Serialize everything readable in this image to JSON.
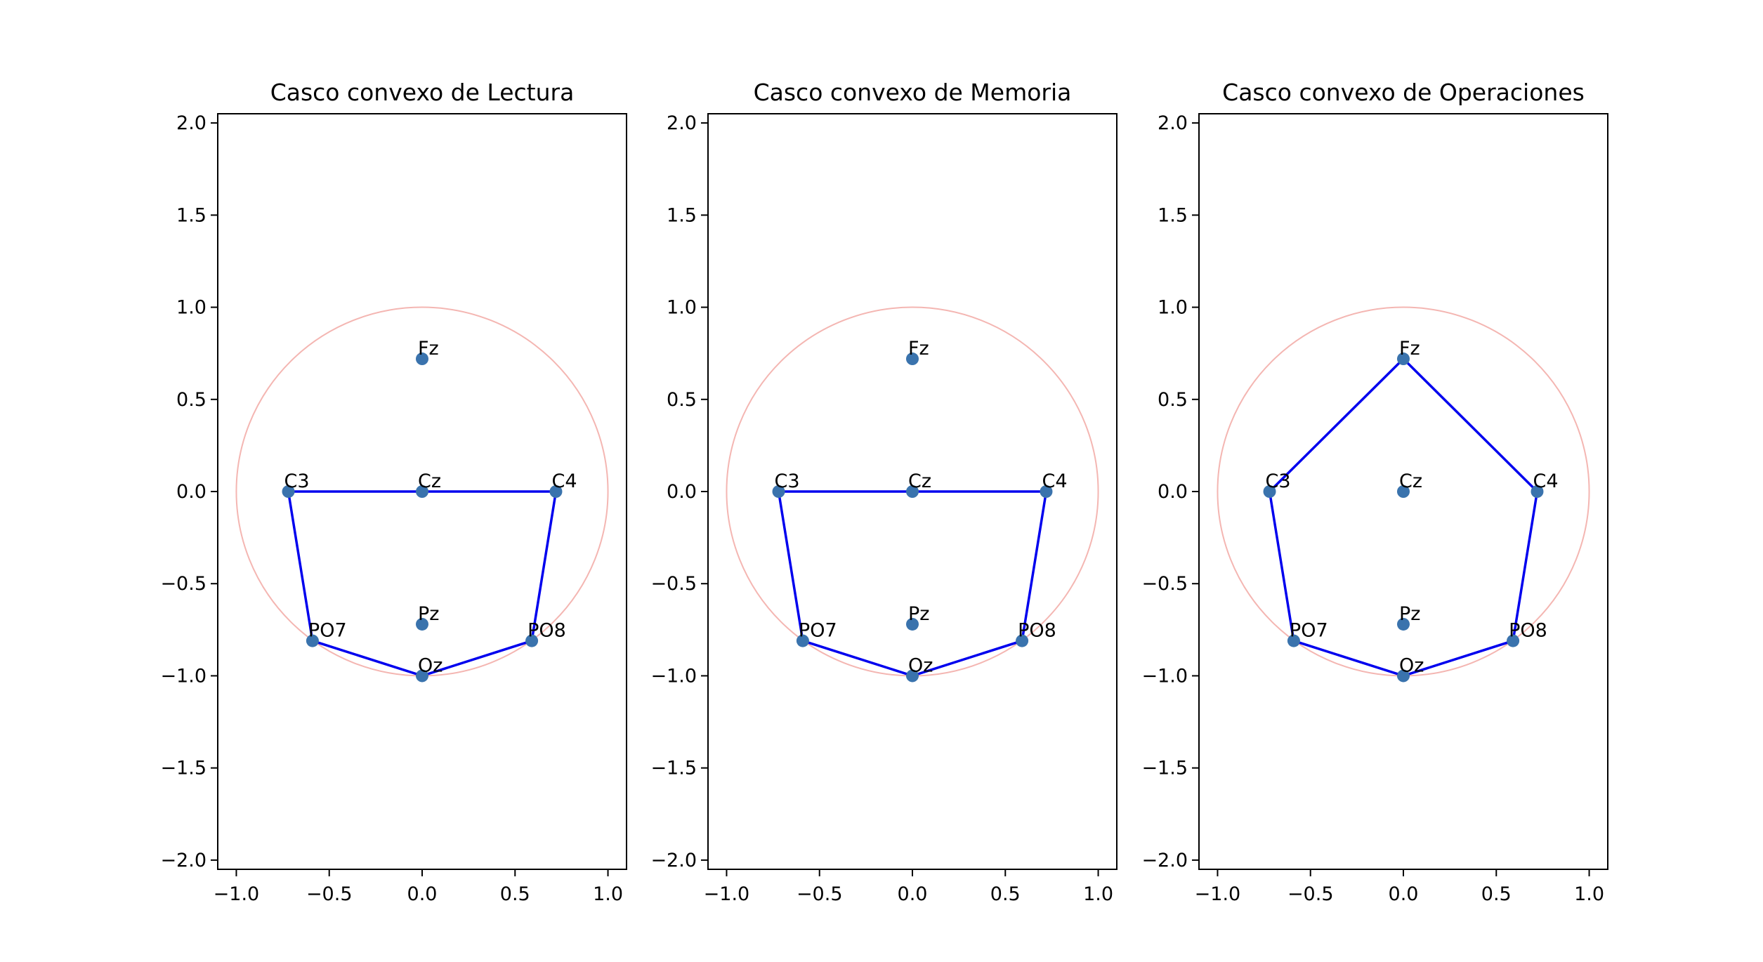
{
  "chart_data": [
    {
      "type": "scatter",
      "title": "Casco convexo de Lectura",
      "xlabel": "",
      "ylabel": "",
      "xlim": [
        -1.1,
        1.1
      ],
      "ylim": [
        -2.05,
        2.05
      ],
      "xticks": [
        -1.0,
        -0.5,
        0.0,
        0.5,
        1.0
      ],
      "xtick_labels": [
        "−1.0",
        "−0.5",
        "0.0",
        "0.5",
        "1.0"
      ],
      "yticks": [
        -2.0,
        -1.5,
        -1.0,
        -0.5,
        0.0,
        0.5,
        1.0,
        1.5,
        2.0
      ],
      "ytick_labels": [
        "−2.0",
        "−1.5",
        "−1.0",
        "−0.5",
        "0.0",
        "0.5",
        "1.0",
        "1.5",
        "2.0"
      ],
      "grid": false,
      "circle": {
        "cx": 0,
        "cy": 0,
        "r": 1,
        "color": "#f4b6b2"
      },
      "points": [
        {
          "label": "Fz",
          "x": 0.0,
          "y": 0.72
        },
        {
          "label": "C3",
          "x": -0.72,
          "y": 0.0
        },
        {
          "label": "Cz",
          "x": 0.0,
          "y": 0.0
        },
        {
          "label": "C4",
          "x": 0.72,
          "y": 0.0
        },
        {
          "label": "Pz",
          "x": 0.0,
          "y": -0.72
        },
        {
          "label": "PO7",
          "x": -0.59,
          "y": -0.81
        },
        {
          "label": "Oz",
          "x": 0.0,
          "y": -1.0
        },
        {
          "label": "PO8",
          "x": 0.59,
          "y": -0.81
        }
      ],
      "hull": [
        "C3",
        "Cz",
        "C4",
        "PO8",
        "Oz",
        "PO7",
        "C3"
      ],
      "point_color": "#3a73ad",
      "hull_color": "#0000ee"
    },
    {
      "type": "scatter",
      "title": "Casco convexo de Memoria",
      "xlabel": "",
      "ylabel": "",
      "xlim": [
        -1.1,
        1.1
      ],
      "ylim": [
        -2.05,
        2.05
      ],
      "xticks": [
        -1.0,
        -0.5,
        0.0,
        0.5,
        1.0
      ],
      "xtick_labels": [
        "−1.0",
        "−0.5",
        "0.0",
        "0.5",
        "1.0"
      ],
      "yticks": [
        -2.0,
        -1.5,
        -1.0,
        -0.5,
        0.0,
        0.5,
        1.0,
        1.5,
        2.0
      ],
      "ytick_labels": [
        "−2.0",
        "−1.5",
        "−1.0",
        "−0.5",
        "0.0",
        "0.5",
        "1.0",
        "1.5",
        "2.0"
      ],
      "grid": false,
      "circle": {
        "cx": 0,
        "cy": 0,
        "r": 1,
        "color": "#f4b6b2"
      },
      "points": [
        {
          "label": "Fz",
          "x": 0.0,
          "y": 0.72
        },
        {
          "label": "C3",
          "x": -0.72,
          "y": 0.0
        },
        {
          "label": "Cz",
          "x": 0.0,
          "y": 0.0
        },
        {
          "label": "C4",
          "x": 0.72,
          "y": 0.0
        },
        {
          "label": "Pz",
          "x": 0.0,
          "y": -0.72
        },
        {
          "label": "PO7",
          "x": -0.59,
          "y": -0.81
        },
        {
          "label": "Oz",
          "x": 0.0,
          "y": -1.0
        },
        {
          "label": "PO8",
          "x": 0.59,
          "y": -0.81
        }
      ],
      "hull": [
        "C3",
        "Cz",
        "C4",
        "PO8",
        "Oz",
        "PO7",
        "C3"
      ],
      "point_color": "#3a73ad",
      "hull_color": "#0000ee"
    },
    {
      "type": "scatter",
      "title": "Casco convexo de Operaciones",
      "xlabel": "",
      "ylabel": "",
      "xlim": [
        -1.1,
        1.1
      ],
      "ylim": [
        -2.05,
        2.05
      ],
      "xticks": [
        -1.0,
        -0.5,
        0.0,
        0.5,
        1.0
      ],
      "xtick_labels": [
        "−1.0",
        "−0.5",
        "0.0",
        "0.5",
        "1.0"
      ],
      "yticks": [
        -2.0,
        -1.5,
        -1.0,
        -0.5,
        0.0,
        0.5,
        1.0,
        1.5,
        2.0
      ],
      "ytick_labels": [
        "−2.0",
        "−1.5",
        "−1.0",
        "−0.5",
        "0.0",
        "0.5",
        "1.0",
        "1.5",
        "2.0"
      ],
      "grid": false,
      "circle": {
        "cx": 0,
        "cy": 0,
        "r": 1,
        "color": "#f4b6b2"
      },
      "points": [
        {
          "label": "Fz",
          "x": 0.0,
          "y": 0.72
        },
        {
          "label": "C3",
          "x": -0.72,
          "y": 0.0
        },
        {
          "label": "Cz",
          "x": 0.0,
          "y": 0.0
        },
        {
          "label": "C4",
          "x": 0.72,
          "y": 0.0
        },
        {
          "label": "Pz",
          "x": 0.0,
          "y": -0.72
        },
        {
          "label": "PO7",
          "x": -0.59,
          "y": -0.81
        },
        {
          "label": "Oz",
          "x": 0.0,
          "y": -1.0
        },
        {
          "label": "PO8",
          "x": 0.59,
          "y": -0.81
        }
      ],
      "hull": [
        "Fz",
        "C4",
        "PO8",
        "Oz",
        "PO7",
        "C3",
        "Fz"
      ],
      "point_color": "#3a73ad",
      "hull_color": "#0000ee"
    }
  ]
}
